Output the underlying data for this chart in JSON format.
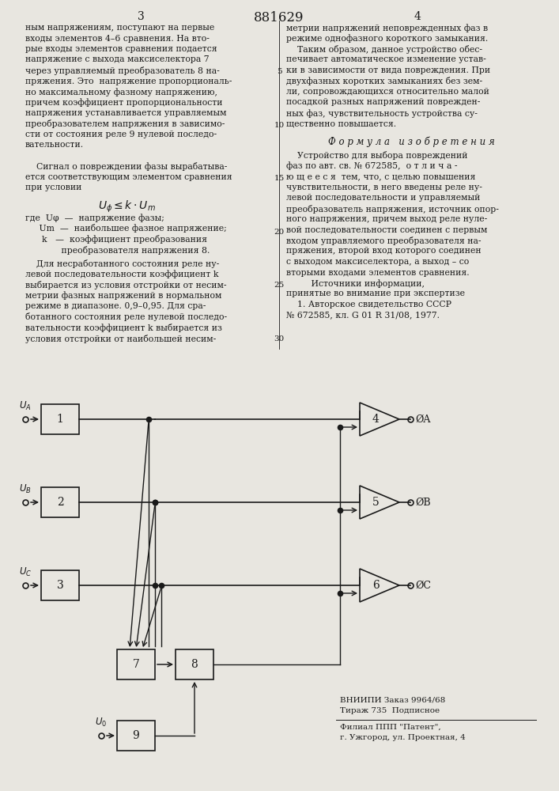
{
  "title": "881629",
  "page_left": "3",
  "page_right": "4",
  "bg_color": "#e8e6e0",
  "text_color": "#1a1a1a",
  "left_col_lines": [
    "ным напряжениям, поступают на первые",
    "входы элементов 4–6 сравнения. На вто-",
    "рые входы элементов сравнения подается",
    "напряжение с выхода максиселектора 7",
    "через управляемый преобразователь 8 на-",
    "пряжения. Это  напряжение пропорциональ-",
    "но максимальному фазному напряжению,",
    "причем коэффициент пропорциональности",
    "напряжения устанавливается управляемым",
    "преобразователем напряжения в зависимо-",
    "сти от состояния реле 9 нулевой последо-",
    "вательности.",
    "",
    "    Сигнал о повреждении фазы вырабатыва-",
    "ется соответствующим элементом сравнения",
    "при условии"
  ],
  "formula_vars": [
    "где  Uφ  —  напряжение фазы;",
    "     Um  —  наибольшее фазное напряжение;",
    "      k   —  коэффициент преобразования",
    "             преобразователя напряжения 8."
  ],
  "left_col_lines2": [
    "    Для несработанного состояния реле ну-",
    "левой последовательности коэффициент k",
    "выбирается из условия отстройки от несим-",
    "метрии фазных напряжений в нормальном",
    "режиме в диапазоне. 0,9–0,95. Для сра-",
    "ботанного состояния реле нулевой последо-",
    "вательности коэффициент k выбирается из",
    "условия отстройки от наибольшей несим-"
  ],
  "right_col_lines": [
    "метрии напряжений неповрежденных фаз в",
    "режиме однофазного короткого замыкания.",
    "    Таким образом, данное устройство обес-",
    "печивает автоматическое изменение устав-",
    "ки в зависимости от вида повреждения. При",
    "двухфазных коротких замыканиях без зем-",
    "ли, сопровождающихся относительно малой",
    "посадкой разных напряжений поврежден-",
    "ных фаз, чувствительность устройства су-",
    "щественно повышается."
  ],
  "formula_title": "Ф о р м у л а   и з о б р е т е н и я",
  "right_col_lines2": [
    "    Устройство для выбора повреждений",
    "фаз по авт. св. № 672585,  о т л и ч а -",
    "ю щ е е с я  тем, что, с целью повышения",
    "чувствительности, в него введены реле ну-",
    "левой последовательности и управляемый",
    "преобразователь напряжения, источник опор-",
    "ного напряжения, причем выход реле нуле-",
    "вой последовательности соединен с первым",
    "входом управляемого преобразователя на-",
    "пряжения, второй вход которого соединен",
    "с выходом максиселектора, а выход – со",
    "вторыми входами элементов сравнения.",
    "         Источники информации,",
    "принятые во внимание при экспертизе",
    "    1. Авторское свидетельство СССР",
    "№ 672585, кл. G 01 R 31/08, 1977."
  ],
  "footer1": "ВНИИПИ Заказ 9964/68",
  "footer2": "Тираж 735  Подписное",
  "footer3": "Филиал ППП \"Патент\",",
  "footer4": "г. Ужгород, ул. Проектная, 4"
}
